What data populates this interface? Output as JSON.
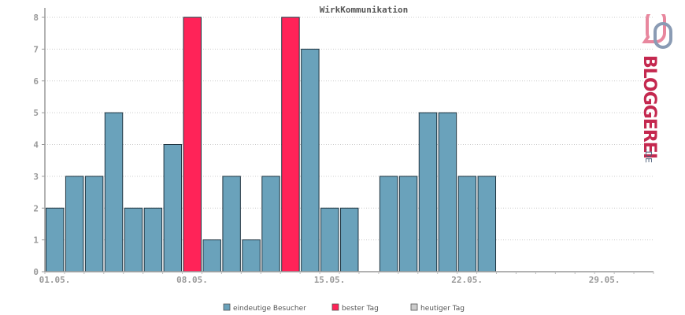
{
  "chart_data": {
    "type": "bar",
    "title": "WirkKommunikation",
    "x_labels": [
      "01.05.",
      "08.05.",
      "15.05.",
      "22.05.",
      "29.05."
    ],
    "categories": [
      "01.05.",
      "02.05.",
      "03.05.",
      "04.05.",
      "05.05.",
      "06.05.",
      "07.05.",
      "08.05.",
      "09.05.",
      "10.05.",
      "11.05.",
      "12.05.",
      "13.05.",
      "14.05.",
      "15.05.",
      "16.05.",
      "17.05.",
      "18.05.",
      "19.05.",
      "20.05.",
      "21.05.",
      "22.05.",
      "23.05.",
      "24.05.",
      "25.05.",
      "26.05.",
      "27.05.",
      "28.05.",
      "29.05.",
      "30.05.",
      "31.05."
    ],
    "values": [
      2,
      3,
      3,
      5,
      2,
      2,
      4,
      8,
      1,
      3,
      1,
      3,
      8,
      7,
      2,
      2,
      0,
      3,
      3,
      5,
      5,
      3,
      3,
      0,
      0,
      0,
      0,
      0,
      0,
      0,
      0
    ],
    "highlight_best": [
      "08.05.",
      "13.05."
    ],
    "yticks": [
      0,
      1,
      2,
      3,
      4,
      5,
      6,
      7,
      8
    ],
    "ylim": [
      0,
      8
    ],
    "grid": true,
    "legend_position": "bottom",
    "series": [
      {
        "name": "eindeutige Besucher",
        "color": "#6aa2bb"
      },
      {
        "name": "bester Tag",
        "color": "#ff2358"
      },
      {
        "name": "heutiger Tag",
        "color": "#cccccc"
      }
    ]
  },
  "logo": {
    "text": "BLOGGEREI",
    "suffix": ".DE",
    "color_main": "#c4284f",
    "color_dark": "#4a5c77"
  }
}
